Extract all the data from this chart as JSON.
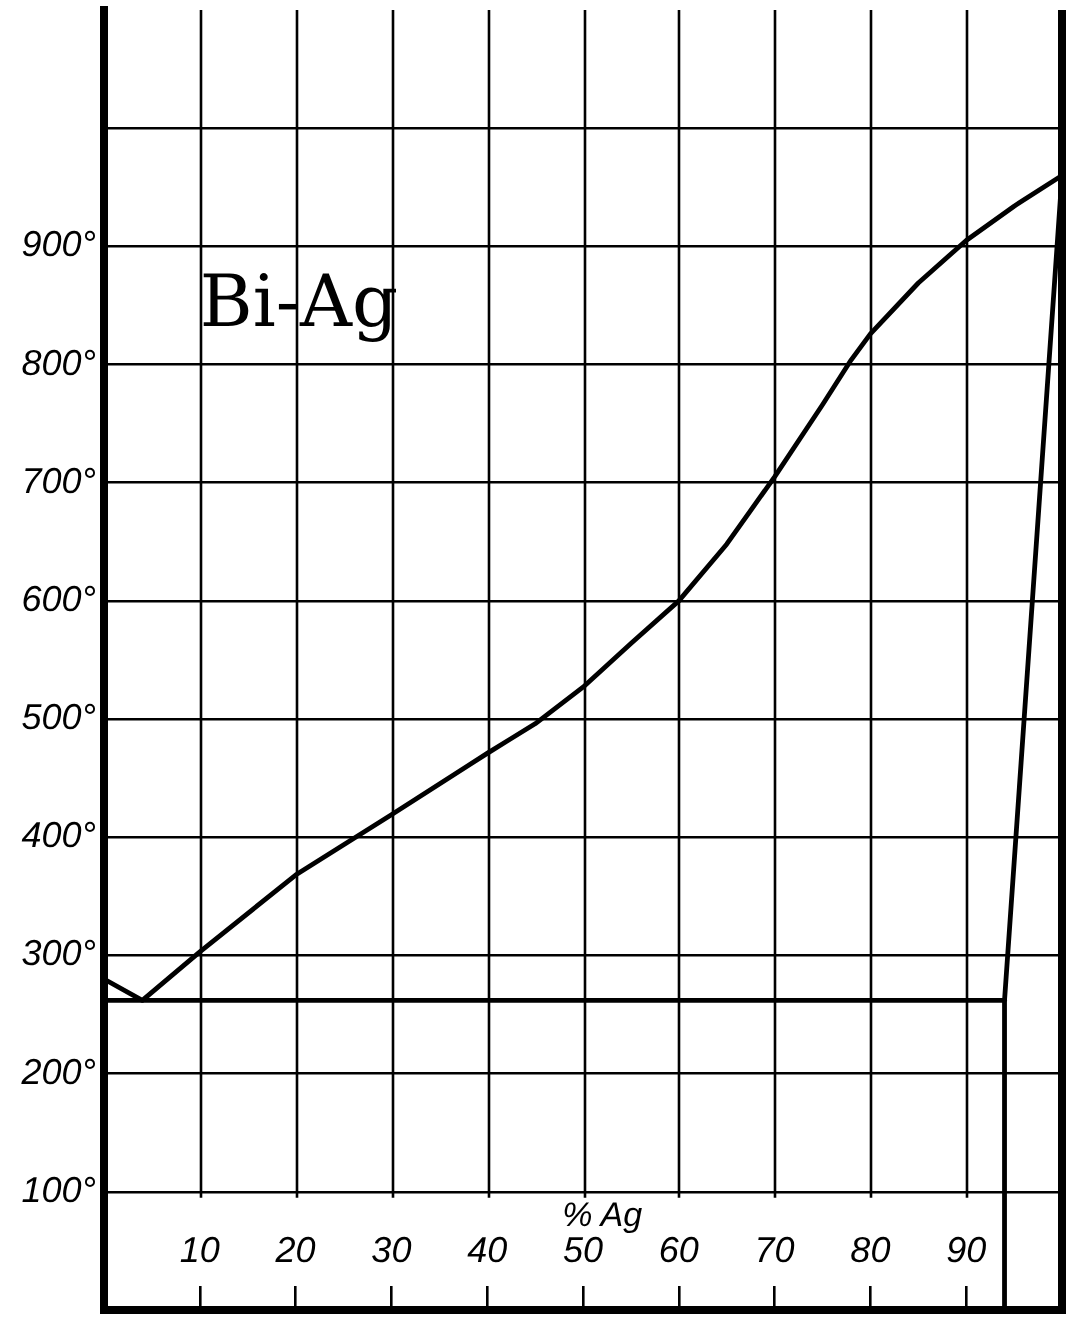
{
  "chart_data": {
    "type": "line",
    "title": "Bi-Ag",
    "xlabel": "% Ag",
    "xlim": [
      0,
      100
    ],
    "ylim": [
      0,
      1100
    ],
    "xticks": [
      10,
      20,
      30,
      40,
      50,
      60,
      70,
      80,
      90
    ],
    "yticks": [
      {
        "value": 100,
        "label": "100°"
      },
      {
        "value": 200,
        "label": "200°"
      },
      {
        "value": 300,
        "label": "300°"
      },
      {
        "value": 400,
        "label": "400°"
      },
      {
        "value": 500,
        "label": "500°"
      },
      {
        "value": 600,
        "label": "600°"
      },
      {
        "value": 700,
        "label": "700°"
      },
      {
        "value": 800,
        "label": "800°"
      },
      {
        "value": 900,
        "label": "900°"
      },
      {
        "value": 1000,
        "label": null
      }
    ],
    "grid": true,
    "legend": false,
    "marker": "none",
    "line_style": "solid",
    "series": [
      {
        "color": "#000000",
        "x": [
          0,
          4,
          10,
          20,
          30,
          40,
          45,
          50,
          55,
          60,
          65,
          70,
          75,
          78,
          80,
          85,
          90,
          95,
          100
        ],
        "values": [
          280,
          262,
          303,
          368,
          419,
          471,
          496,
          527,
          564,
          600,
          648,
          705,
          766,
          804,
          826,
          869,
          905,
          934,
          960
        ]
      },
      {
        "color": "#000000",
        "x": [
          0,
          94
        ],
        "values": [
          262,
          262
        ]
      },
      {
        "color": "#000000",
        "x": [
          100,
          94,
          94
        ],
        "values": [
          960,
          262,
          0
        ]
      }
    ]
  }
}
